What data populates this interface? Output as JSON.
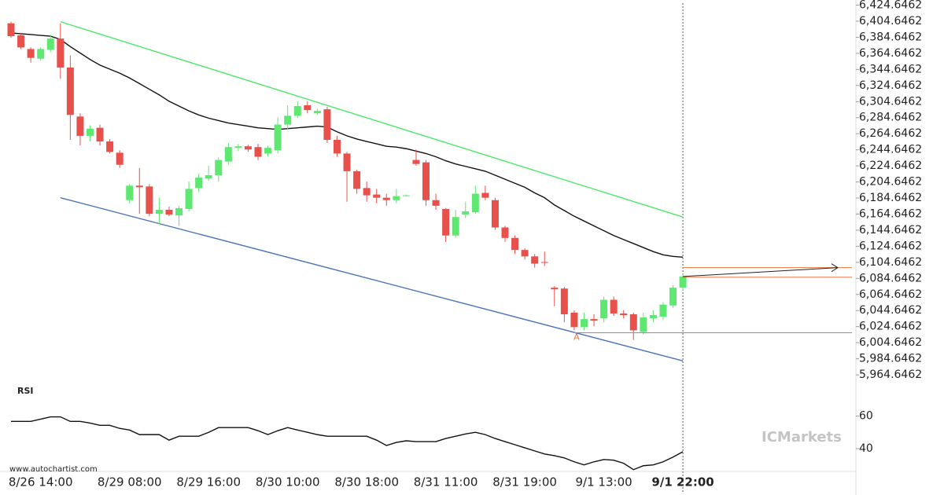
{
  "chart_data": {
    "type": "candlestick",
    "categories": [
      null,
      null,
      null,
      "8/26 14:00",
      null,
      null,
      null,
      null,
      null,
      null,
      null,
      null,
      "8/29 08:00",
      null,
      null,
      null,
      null,
      null,
      null,
      null,
      "8/29 16:00",
      null,
      null,
      null,
      null,
      null,
      null,
      null,
      "8/30 10:00",
      null,
      null,
      null,
      null,
      null,
      null,
      null,
      "8/30 18:00",
      null,
      null,
      null,
      null,
      null,
      null,
      null,
      "8/31 11:00",
      null,
      null,
      null,
      null,
      null,
      null,
      null,
      "8/31 19:00",
      null,
      null,
      null,
      null,
      null,
      null,
      null,
      "9/1 13:00",
      null,
      null,
      null,
      null,
      null,
      null,
      null,
      "9/1 22:00"
    ],
    "open": [
      6402,
      6387,
      6370,
      6358,
      6369,
      6383,
      6347,
      6286,
      6262,
      6272,
      6255,
      6241,
      6182,
      6200,
      6199,
      6165,
      6170,
      6163,
      6171,
      6197,
      6209,
      6213,
      6230,
      6247,
      6249,
      6248,
      6240,
      6244,
      6276,
      6287,
      6300,
      6290,
      6295,
      6257,
      6240,
      6218,
      6197,
      6189,
      6185,
      6182,
      6187,
      6232,
      6229,
      6182,
      6171,
      6138,
      6164,
      6167,
      6191,
      6182,
      6148,
      6135,
      6120,
      6112,
      6105,
      6073,
      6072,
      6042,
      6024,
      6034,
      6035,
      6058,
      6041,
      6040,
      6018,
      6035,
      6037,
      6051,
      6073
    ],
    "high": [
      6404,
      6390,
      6372,
      6372,
      6388,
      6402,
      6362,
      6290,
      6275,
      6276,
      6258,
      6244,
      6202,
      6222,
      6202,
      6185,
      6174,
      6175,
      6205,
      6215,
      6225,
      6235,
      6253,
      6252,
      6251,
      6252,
      6250,
      6285,
      6300,
      6305,
      6305,
      6296,
      6298,
      6262,
      6242,
      6220,
      6205,
      6196,
      6190,
      6196,
      6189,
      6245,
      6232,
      6190,
      6172,
      6170,
      6180,
      6200,
      6200,
      6185,
      6150,
      6138,
      6122,
      6115,
      6118,
      6075,
      6074,
      6045,
      6042,
      6040,
      6062,
      6062,
      6045,
      6042,
      6042,
      6045,
      6055,
      6076,
      6090
    ],
    "low": [
      6384,
      6370,
      6353,
      6356,
      6366,
      6333,
      6257,
      6250,
      6255,
      6250,
      6240,
      6222,
      6178,
      6165,
      6162,
      6152,
      6162,
      6150,
      6168,
      6192,
      6206,
      6205,
      6226,
      6243,
      6242,
      6232,
      6236,
      6240,
      6270,
      6284,
      6290,
      6288,
      6253,
      6236,
      6180,
      6190,
      6180,
      6178,
      6175,
      6178,
      6187,
      6225,
      6175,
      6170,
      6130,
      6135,
      6160,
      6165,
      6182,
      6145,
      6130,
      6115,
      6108,
      6098,
      6100,
      6050,
      6030,
      6020,
      6020,
      6025,
      6030,
      6038,
      6035,
      6008,
      6015,
      6030,
      6033,
      6048,
      6070
    ],
    "close": [
      6386,
      6372,
      6359,
      6370,
      6383,
      6347,
      6288,
      6262,
      6271,
      6255,
      6242,
      6226,
      6200,
      6198,
      6165,
      6170,
      6164,
      6172,
      6196,
      6210,
      6213,
      6232,
      6248,
      6249,
      6245,
      6236,
      6247,
      6276,
      6287,
      6299,
      6294,
      6293,
      6257,
      6240,
      6218,
      6196,
      6188,
      6185,
      6182,
      6187,
      6188,
      6227,
      6182,
      6175,
      6138,
      6161,
      6168,
      6190,
      6185,
      6148,
      6135,
      6120,
      6112,
      6103,
      6104,
      6071,
      6040,
      6024,
      6034,
      6032,
      6058,
      6041,
      6039,
      6020,
      6036,
      6039,
      6052,
      6073,
      6087
    ],
    "up_color": "#5ee872",
    "down_color": "#e8504c",
    "ylim": [
      5952,
      6431
    ],
    "yticks": [
      {
        "value": 6424.6462,
        "label": "6,424.6462"
      },
      {
        "value": 6404.6462,
        "label": "6,404.6462"
      },
      {
        "value": 6384.6462,
        "label": "6,384.6462"
      },
      {
        "value": 6364.6462,
        "label": "6,364.6462"
      },
      {
        "value": 6344.6462,
        "label": "6,344.6462"
      },
      {
        "value": 6324.6462,
        "label": "6,324.6462"
      },
      {
        "value": 6304.6462,
        "label": "6,304.6462"
      },
      {
        "value": 6284.6462,
        "label": "6,284.6462"
      },
      {
        "value": 6264.6462,
        "label": "6,264.6462"
      },
      {
        "value": 6244.6462,
        "label": "6,244.6462"
      },
      {
        "value": 6224.6462,
        "label": "6,224.6462"
      },
      {
        "value": 6204.6462,
        "label": "6,204.6462"
      },
      {
        "value": 6184.6462,
        "label": "6,184.6462"
      },
      {
        "value": 6164.6462,
        "label": "6,164.6462"
      },
      {
        "value": 6144.6462,
        "label": "6,144.6462"
      },
      {
        "value": 6124.6462,
        "label": "6,124.6462"
      },
      {
        "value": 6104.6462,
        "label": "6,104.6462"
      },
      {
        "value": 6084.6462,
        "label": "6,084.6462"
      },
      {
        "value": 6064.6462,
        "label": "6,064.6462"
      },
      {
        "value": 6044.6462,
        "label": "6,044.6462"
      },
      {
        "value": 6024.6462,
        "label": "6,024.6462"
      },
      {
        "value": 6004.6462,
        "label": "6,004.6462"
      },
      {
        "value": 5984.6462,
        "label": "5,984.6462"
      },
      {
        "value": 5964.6462,
        "label": "5,964.6462"
      }
    ],
    "moving_average": {
      "color": "#111111",
      "values": [
        6390,
        6389,
        6388,
        6387,
        6386,
        6382,
        6373,
        6365,
        6357,
        6350,
        6345,
        6340,
        6334,
        6327,
        6320,
        6313,
        6305,
        6299,
        6293,
        6288,
        6284,
        6281,
        6278,
        6276,
        6274,
        6272,
        6271,
        6270,
        6271,
        6272,
        6273,
        6274,
        6273,
        6267,
        6262,
        6258,
        6255,
        6252,
        6249,
        6248,
        6246,
        6243,
        6240,
        6236,
        6231,
        6227,
        6224,
        6221,
        6218,
        6213,
        6208,
        6203,
        6198,
        6191,
        6185,
        6176,
        6169,
        6162,
        6156,
        6150,
        6144,
        6138,
        6133,
        6128,
        6123,
        6118,
        6114,
        6112,
        6111
      ]
    },
    "channel": [
      {
        "color": "#4de86a",
        "x": [
          5,
          68
        ],
        "values": [
          6404,
          6161
        ]
      },
      {
        "color": "#4a74b4",
        "x": [
          5,
          68
        ],
        "values": [
          6185,
          5982
        ]
      }
    ],
    "levels": {
      "color": "#e8743b",
      "values": [
        6098,
        6086,
        6017
      ]
    },
    "annotation": {
      "text": "A",
      "x": 57
    },
    "rsi": {
      "label": "RSI",
      "color": "#111111",
      "ylim": [
        26,
        80
      ],
      "yticks": [
        40,
        60
      ],
      "values": [
        56.7,
        56.7,
        56.7,
        58.1,
        59.5,
        59.5,
        56.7,
        56.7,
        55.7,
        54.3,
        54.3,
        52.4,
        51.4,
        48.6,
        48.6,
        48.6,
        45.2,
        47.6,
        47.6,
        47.6,
        50,
        52.9,
        52.9,
        52.9,
        52.9,
        51,
        48.6,
        51,
        52.9,
        51.4,
        50,
        48.6,
        47.6,
        47.6,
        47.6,
        47.6,
        47.6,
        45.2,
        41.9,
        43.8,
        44.8,
        44.3,
        44.3,
        44.3,
        46.2,
        47.6,
        49,
        50,
        48.6,
        46.2,
        44.3,
        42.4,
        40.5,
        38.6,
        36.7,
        35.7,
        34.3,
        31.9,
        30,
        31.9,
        33.3,
        32.9,
        31,
        27.1,
        29.5,
        30,
        31.9,
        34.8,
        38.1
      ]
    },
    "source": "www.autochartist.com",
    "watermark": "ICMarkets"
  }
}
